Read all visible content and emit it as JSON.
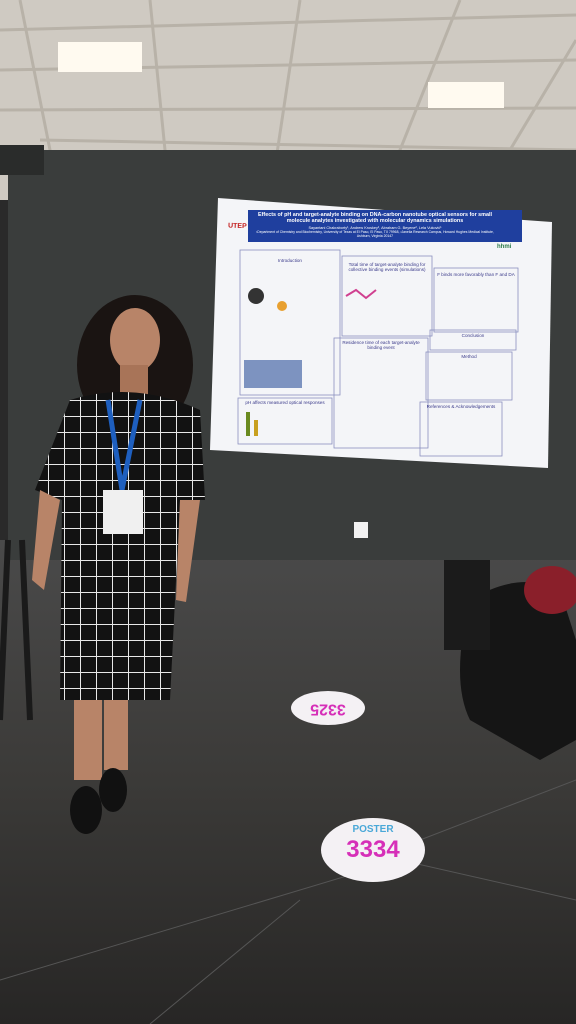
{
  "poster": {
    "logo_left": "UTEP",
    "logo_right": "hhmi",
    "title": "Effects of pH and target-analyte binding on DNA-carbon nanotube optical sensors for small molecule analytes investigated with molecular dynamics simulations",
    "authors": "Sayantani Chakraborty¹, Andrew Kroskey², Abraham G. Beyene², Lela Vuković¹",
    "affiliation": "¹Department of Chemistry and Biochemistry, University of Texas at El Paso, El Paso, TX 79968, ²Janelia Research Campus, Howard Hughes Medical Institute, Ashburn, Virginia 20147",
    "sections": [
      "Introduction",
      "Total time of target-analyte binding for collective binding events (simulations)",
      "F binds more favorably than F and DA",
      "Residence time of each target-analyte binding event",
      "Conclusion",
      "Method",
      "pH affects measured optical responses",
      "References & Acknowledgements"
    ]
  },
  "floor_markers": [
    {
      "number": "3325"
    },
    {
      "label": "POSTER",
      "number": "3334"
    }
  ]
}
